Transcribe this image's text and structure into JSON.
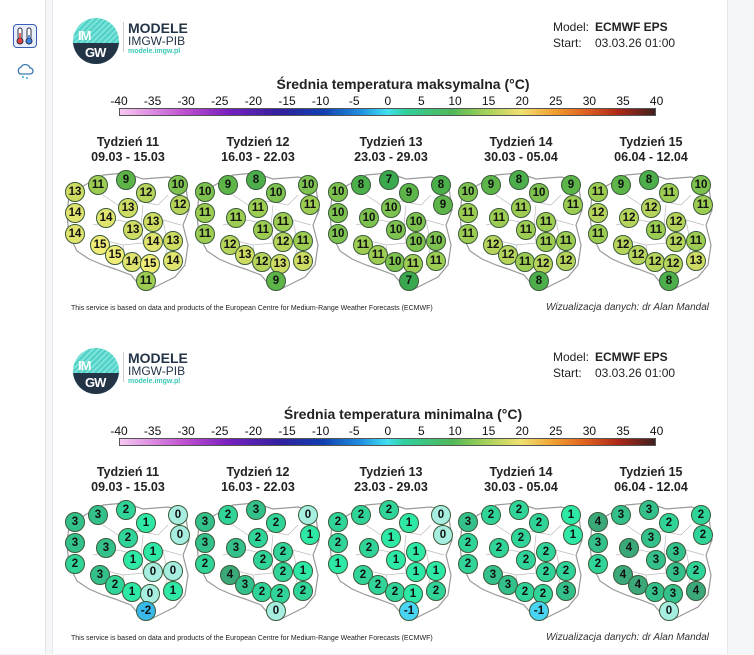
{
  "sidebar": {
    "items": [
      {
        "icon": "thermometer-icon",
        "active": true
      },
      {
        "icon": "cloud-snow-icon",
        "active": false
      }
    ]
  },
  "brand": {
    "name": "MODELE",
    "sub": "IMGW-PIB",
    "url": "modele.imgw.pl",
    "logo_top": "IM",
    "logo_bot": "GW"
  },
  "colorbar_ticks": [
    "-40",
    "-35",
    "-30",
    "-25",
    "-20",
    "-15",
    "-10",
    "-5",
    "0",
    "5",
    "10",
    "15",
    "20",
    "25",
    "30",
    "35",
    "40"
  ],
  "panels": [
    {
      "model_label": "Model:",
      "model": "ECMWF EPS",
      "start_label": "Start:",
      "start": "03.03.26 01:00",
      "title": "Średnia temperatura maksymalna (°C)",
      "weeks": [
        {
          "name": "Tydzień 11",
          "dates": "09.03 - 15.03",
          "values": [
            11,
            9,
            10,
            13,
            12,
            12,
            14,
            13,
            14,
            13,
            14,
            13,
            15,
            14,
            13,
            15,
            14,
            15,
            14,
            11
          ]
        },
        {
          "name": "Tydzień 12",
          "dates": "16.03 - 22.03",
          "values": [
            9,
            8,
            10,
            10,
            10,
            11,
            11,
            11,
            11,
            11,
            11,
            11,
            12,
            12,
            11,
            13,
            12,
            13,
            13,
            9
          ]
        },
        {
          "name": "Tydzień 13",
          "dates": "23.03 - 29.03",
          "values": [
            8,
            7,
            8,
            10,
            9,
            9,
            10,
            10,
            10,
            10,
            10,
            10,
            11,
            10,
            10,
            11,
            10,
            11,
            11,
            7
          ]
        },
        {
          "name": "Tydzień 14",
          "dates": "30.03 - 05.04",
          "values": [
            9,
            8,
            9,
            10,
            10,
            11,
            11,
            11,
            11,
            11,
            11,
            11,
            12,
            11,
            11,
            12,
            11,
            12,
            12,
            8
          ]
        },
        {
          "name": "Tydzień 15",
          "dates": "06.04 - 12.04",
          "values": [
            9,
            8,
            10,
            11,
            11,
            11,
            12,
            12,
            12,
            12,
            11,
            11,
            12,
            12,
            11,
            12,
            12,
            12,
            13,
            8
          ]
        }
      ],
      "footer_left": "This service is based on data and products of the European Centre for Medium-Range Weather Forecasts (ECMWF)",
      "footer_right": "Wizualizacja danych: dr Alan Mandal"
    },
    {
      "model_label": "Model:",
      "model": "ECMWF EPS",
      "start_label": "Start:",
      "start": "03.03.26 01:00",
      "title": "Średnia temperatura minimalna (°C)",
      "weeks": [
        {
          "name": "Tydzień 11",
          "dates": "09.03 - 15.03",
          "values": [
            3,
            2,
            0,
            3,
            1,
            0,
            3,
            2,
            3,
            1,
            2,
            1,
            3,
            0,
            0,
            2,
            1,
            0,
            1,
            -2
          ]
        },
        {
          "name": "Tydzień 12",
          "dates": "16.03 - 22.03",
          "values": [
            2,
            3,
            0,
            3,
            2,
            1,
            3,
            2,
            3,
            2,
            2,
            2,
            4,
            2,
            1,
            3,
            2,
            2,
            2,
            0
          ]
        },
        {
          "name": "Tydzień 13",
          "dates": "23.03 - 29.03",
          "values": [
            2,
            2,
            0,
            2,
            1,
            0,
            2,
            1,
            2,
            1,
            1,
            1,
            2,
            1,
            1,
            2,
            2,
            1,
            2,
            -1
          ]
        },
        {
          "name": "Tydzień 14",
          "dates": "30.03 - 05.04",
          "values": [
            2,
            2,
            1,
            3,
            2,
            1,
            2,
            2,
            2,
            2,
            2,
            2,
            3,
            2,
            2,
            3,
            2,
            2,
            3,
            -1
          ]
        },
        {
          "name": "Tydzień 15",
          "dates": "06.04 - 12.04",
          "values": [
            3,
            3,
            2,
            4,
            2,
            2,
            3,
            3,
            4,
            3,
            2,
            3,
            4,
            3,
            2,
            4,
            3,
            3,
            4,
            0
          ]
        }
      ],
      "footer_left": "This service is based on data and products of the European Centre for Medium-Range Weather Forecasts (ECMWF)",
      "footer_right": "Wizualizacja danych: dr Alan Mandal"
    }
  ]
}
